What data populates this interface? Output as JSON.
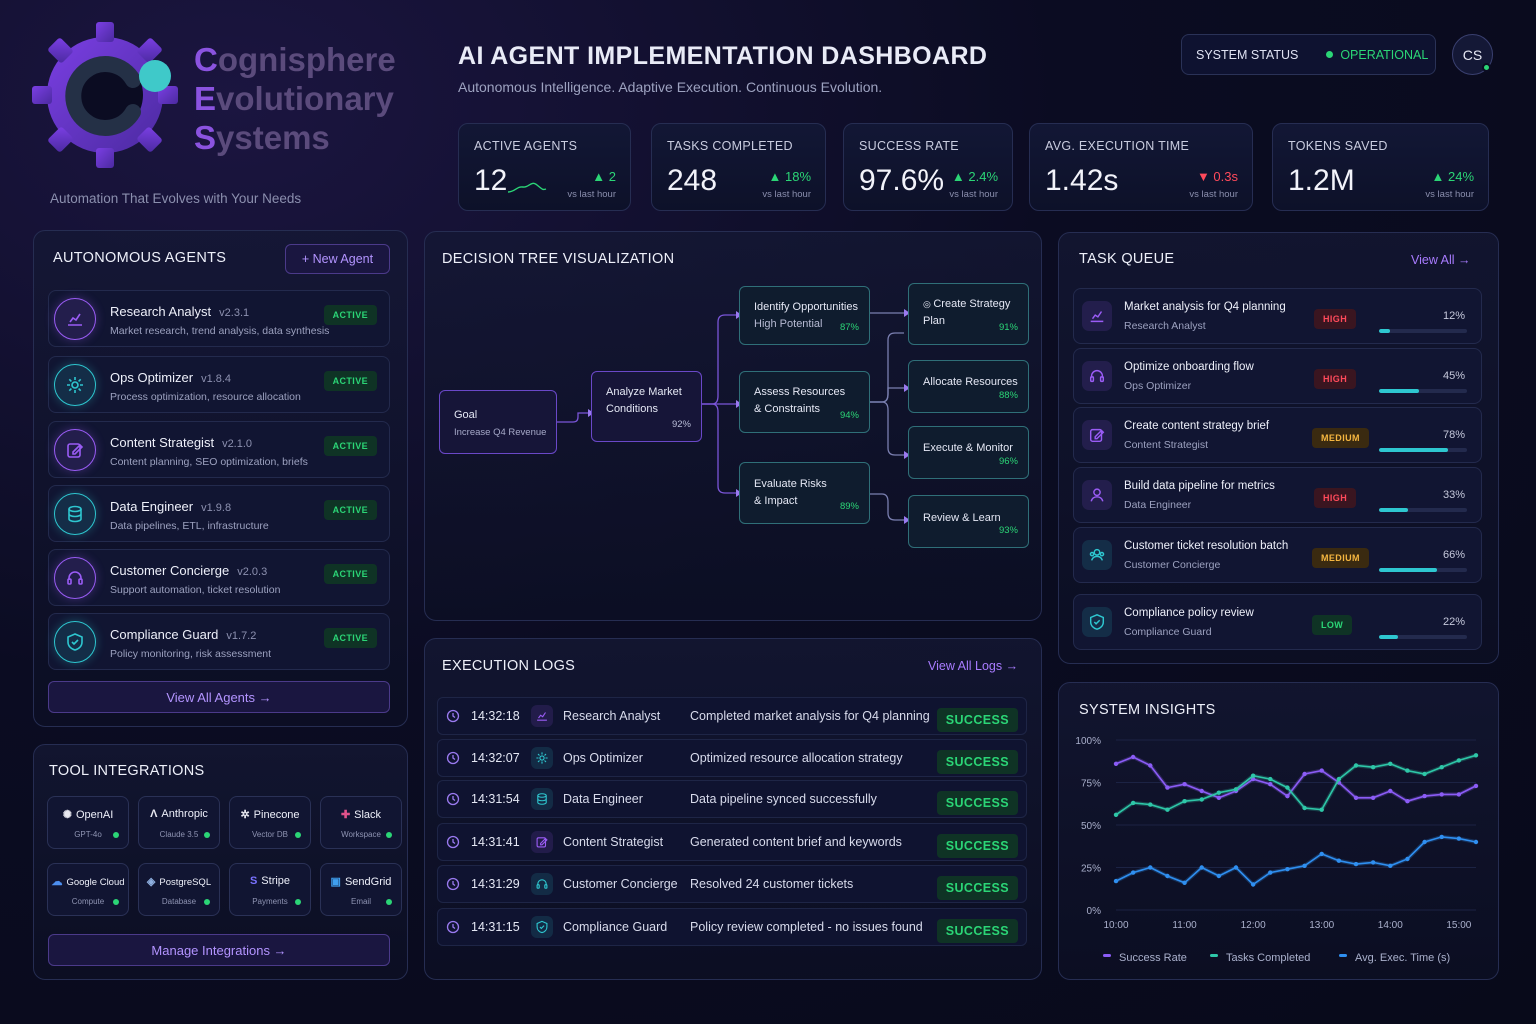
{
  "brand": {
    "line1_first": "C",
    "line1_rest": "ognisphere",
    "line2_first": "E",
    "line2_rest": "volutionary",
    "line3_first": "S",
    "line3_rest": "ystems",
    "tagline": "Automation That Evolves with Your Needs"
  },
  "header": {
    "title": "AI AGENT IMPLEMENTATION DASHBOARD",
    "subtitle": "Autonomous Intelligence. Adaptive Execution. Continuous Evolution.",
    "status_label": "SYSTEM STATUS",
    "status_value": "OPERATIONAL",
    "avatar_initials": "CS"
  },
  "kpis": [
    {
      "label": "ACTIVE AGENTS",
      "value": "12",
      "change": "▲ 2",
      "vs": "vs last hour",
      "dir": "up"
    },
    {
      "label": "TASKS COMPLETED",
      "value": "248",
      "change": "▲ 18%",
      "vs": "vs last hour",
      "dir": "up"
    },
    {
      "label": "SUCCESS RATE",
      "value": "97.6%",
      "change": "▲ 2.4%",
      "vs": "vs last hour",
      "dir": "up"
    },
    {
      "label": "AVG. EXECUTION TIME",
      "value": "1.42s",
      "change": "▼ 0.3s",
      "vs": "vs last hour",
      "dir": "down"
    },
    {
      "label": "TOKENS SAVED",
      "value": "1.2M",
      "change": "▲ 24%",
      "vs": "vs last hour",
      "dir": "up"
    }
  ],
  "agents": {
    "title": "AUTONOMOUS AGENTS",
    "new_button": "+ New Agent",
    "view_all": "View All Agents  →",
    "items": [
      {
        "name": "Research Analyst",
        "version": "v2.3.1",
        "desc": "Market research, trend analysis, data synthesis",
        "status": "ACTIVE",
        "icon": "chart-icon",
        "color": "#9a5cf5"
      },
      {
        "name": "Ops Optimizer",
        "version": "v1.8.4",
        "desc": "Process optimization, resource allocation",
        "status": "ACTIVE",
        "icon": "gear-icon",
        "color": "#2ec7d0"
      },
      {
        "name": "Content Strategist",
        "version": "v2.1.0",
        "desc": "Content planning, SEO optimization, briefs",
        "status": "ACTIVE",
        "icon": "edit-icon",
        "color": "#9a5cf5"
      },
      {
        "name": "Data Engineer",
        "version": "v1.9.8",
        "desc": "Data pipelines, ETL, infrastructure",
        "status": "ACTIVE",
        "icon": "database-icon",
        "color": "#2ec7d0"
      },
      {
        "name": "Customer Concierge",
        "version": "v2.0.3",
        "desc": "Support automation, ticket resolution",
        "status": "ACTIVE",
        "icon": "headset-icon",
        "color": "#9a5cf5"
      },
      {
        "name": "Compliance Guard",
        "version": "v1.7.2",
        "desc": "Policy monitoring, risk assessment",
        "status": "ACTIVE",
        "icon": "shield-icon",
        "color": "#2ec7d0"
      }
    ]
  },
  "tools": {
    "title": "TOOL INTEGRATIONS",
    "manage": "Manage Integrations  →",
    "items": [
      {
        "name": "OpenAI",
        "sub": "GPT-4o",
        "glyph": "✺"
      },
      {
        "name": "Anthropic",
        "sub": "Claude 3.5",
        "glyph": "Λ"
      },
      {
        "name": "Pinecone",
        "sub": "Vector DB",
        "glyph": "✲"
      },
      {
        "name": "Slack",
        "sub": "Workspace",
        "glyph": "✚"
      },
      {
        "name": "Google Cloud",
        "sub": "Compute",
        "glyph": "☁"
      },
      {
        "name": "PostgreSQL",
        "sub": "Database",
        "glyph": "◈"
      },
      {
        "name": "Stripe",
        "sub": "Payments",
        "glyph": "S"
      },
      {
        "name": "SendGrid",
        "sub": "Email",
        "glyph": "▣"
      }
    ]
  },
  "tree": {
    "title": "DECISION TREE VISUALIZATION",
    "goal": {
      "l1": "Goal",
      "l2": "Increase Q4 Revenue"
    },
    "analyze": {
      "l1": "Analyze Market",
      "l2": "Conditions",
      "pct": "92%"
    },
    "identify": {
      "l1": "Identify Opportunities",
      "l2": "High Potential",
      "pct": "87%"
    },
    "assess": {
      "l1": "Assess Resources",
      "l2": "& Constraints",
      "pct": "94%"
    },
    "evaluate": {
      "l1": "Evaluate Risks",
      "l2": "& Impact",
      "pct": "89%"
    },
    "create": {
      "l1": "Create Strategy",
      "l2": "Plan",
      "pct": "91%"
    },
    "allocate": {
      "l1": "Allocate Resources",
      "pct": "88%"
    },
    "execute": {
      "l1": "Execute & Monitor",
      "pct": "96%"
    },
    "review": {
      "l1": "Review & Learn",
      "pct": "93%"
    }
  },
  "logs": {
    "title": "EXECUTION LOGS",
    "view_all": "View All Logs  →",
    "items": [
      {
        "time": "14:32:18",
        "agent": "Research Analyst",
        "msg": "Completed market analysis for Q4 planning",
        "status": "SUCCESS",
        "icon": "chart-icon",
        "color": "#9a5cf5"
      },
      {
        "time": "14:32:07",
        "agent": "Ops Optimizer",
        "msg": "Optimized resource allocation strategy",
        "status": "SUCCESS",
        "icon": "gear-icon",
        "color": "#2ec7d0"
      },
      {
        "time": "14:31:54",
        "agent": "Data Engineer",
        "msg": "Data pipeline synced successfully",
        "status": "SUCCESS",
        "icon": "database-icon",
        "color": "#2ec7d0"
      },
      {
        "time": "14:31:41",
        "agent": "Content Strategist",
        "msg": "Generated content brief and keywords",
        "status": "SUCCESS",
        "icon": "edit-icon",
        "color": "#9a5cf5"
      },
      {
        "time": "14:31:29",
        "agent": "Customer Concierge",
        "msg": "Resolved 24 customer tickets",
        "status": "SUCCESS",
        "icon": "headset-icon",
        "color": "#2ec7d0"
      },
      {
        "time": "14:31:15",
        "agent": "Compliance Guard",
        "msg": "Policy review completed - no issues found",
        "status": "SUCCESS",
        "icon": "shield-icon",
        "color": "#2ec7d0"
      }
    ]
  },
  "tasks": {
    "title": "TASK QUEUE",
    "view_all": "View All  →",
    "items": [
      {
        "title": "Market analysis for Q4 planning",
        "agent": "Research Analyst",
        "priority": "HIGH",
        "progress": 12,
        "pct": "12%",
        "icon": "chart-icon",
        "color": "#9a5cf5"
      },
      {
        "title": "Optimize onboarding flow",
        "agent": "Ops Optimizer",
        "priority": "HIGH",
        "progress": 45,
        "pct": "45%",
        "icon": "headset-icon",
        "color": "#9a5cf5"
      },
      {
        "title": "Create content strategy brief",
        "agent": "Content Strategist",
        "priority": "MEDIUM",
        "progress": 78,
        "pct": "78%",
        "icon": "edit-icon",
        "color": "#9a5cf5"
      },
      {
        "title": "Build data pipeline for metrics",
        "agent": "Data Engineer",
        "priority": "HIGH",
        "progress": 33,
        "pct": "33%",
        "icon": "user-icon",
        "color": "#9a5cf5"
      },
      {
        "title": "Customer ticket resolution batch",
        "agent": "Customer Concierge",
        "priority": "MEDIUM",
        "progress": 66,
        "pct": "66%",
        "icon": "users-icon",
        "color": "#2ec7d0"
      },
      {
        "title": "Compliance policy review",
        "agent": "Compliance Guard",
        "priority": "LOW",
        "progress": 22,
        "pct": "22%",
        "icon": "shield-icon",
        "color": "#2ec7d0"
      }
    ]
  },
  "insights": {
    "title": "SYSTEM INSIGHTS"
  },
  "chart_data": {
    "type": "line",
    "title": "SYSTEM INSIGHTS",
    "x": [
      "10:00",
      "10:15",
      "10:30",
      "10:45",
      "11:00",
      "11:15",
      "11:30",
      "11:45",
      "12:00",
      "12:15",
      "12:30",
      "12:45",
      "13:00",
      "13:15",
      "13:30",
      "13:45",
      "14:00",
      "14:15",
      "14:30",
      "14:45",
      "15:00",
      "15:15"
    ],
    "x_ticks": [
      "10:00",
      "11:00",
      "12:00",
      "13:00",
      "14:00",
      "15:00"
    ],
    "y_ticks": [
      "0%",
      "25%",
      "50%",
      "75%",
      "100%"
    ],
    "ylim": [
      0,
      100
    ],
    "series": [
      {
        "name": "Success Rate",
        "color": "#8b5cf6",
        "values": [
          86,
          90,
          85,
          72,
          74,
          70,
          66,
          70,
          77,
          74,
          67,
          80,
          82,
          75,
          66,
          66,
          70,
          64,
          67,
          68,
          68,
          73
        ]
      },
      {
        "name": "Tasks Completed",
        "color": "#2ec7a8",
        "values": [
          56,
          63,
          62,
          59,
          64,
          65,
          69,
          71,
          79,
          77,
          72,
          60,
          59,
          77,
          85,
          84,
          86,
          82,
          80,
          84,
          88,
          91
        ]
      },
      {
        "name": "Avg. Exec. Time (s)",
        "color": "#2f8ff0",
        "values": [
          17,
          22,
          25,
          20,
          16,
          25,
          20,
          25,
          15,
          22,
          24,
          26,
          33,
          29,
          27,
          28,
          26,
          30,
          40,
          43,
          42,
          40
        ]
      }
    ]
  }
}
